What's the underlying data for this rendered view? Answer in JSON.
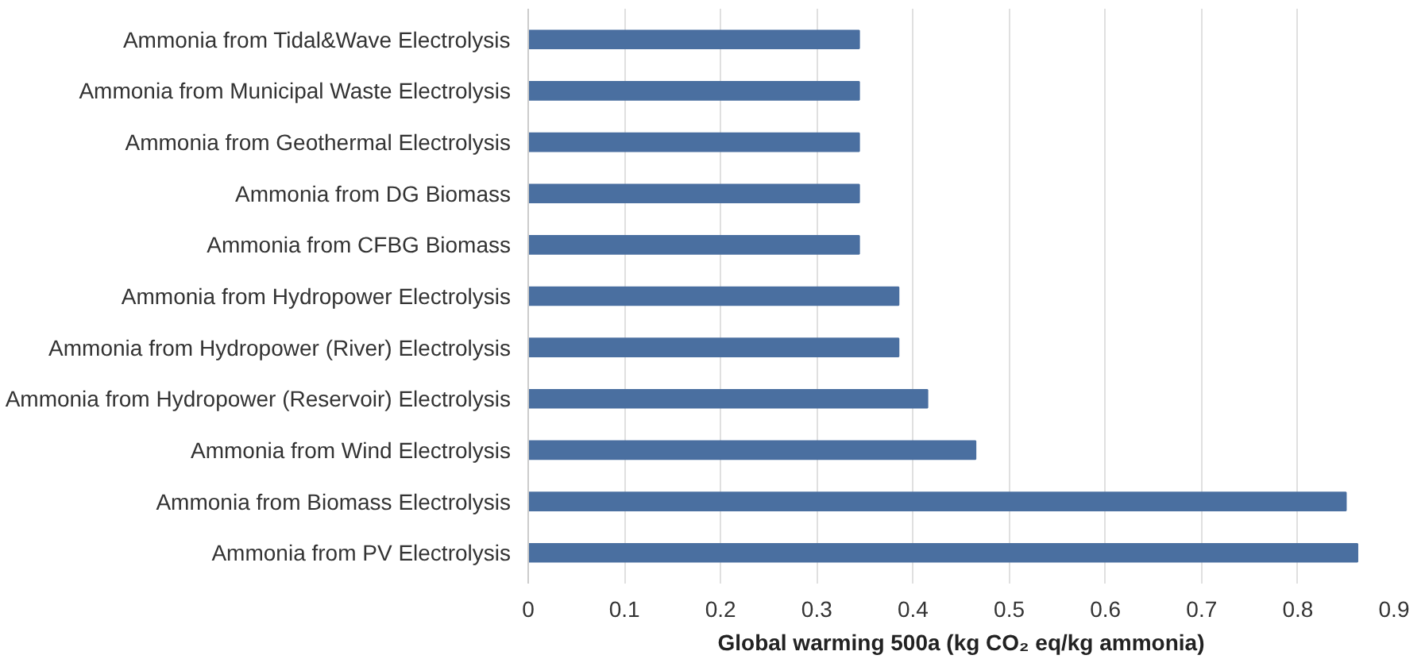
{
  "chart_data": {
    "type": "bar",
    "orientation": "horizontal",
    "xlabel": "Global warming 500a (kg CO₂ eq/kg ammonia)",
    "categories": [
      "Ammonia from Tidal&Wave Electrolysis",
      "Ammonia from Municipal Waste Electrolysis",
      "Ammonia from Geothermal Electrolysis",
      "Ammonia from DG Biomass",
      "Ammonia from CFBG Biomass",
      "Ammonia from Hydropower Electrolysis",
      "Ammonia from Hydropower (River) Electrolysis",
      "Ammonia from Hydropower (Reservoir) Electrolysis",
      "Ammonia from Wind Electrolysis",
      "Ammonia from Biomass Electrolysis",
      "Ammonia from PV Electrolysis"
    ],
    "values": [
      0.344,
      0.344,
      0.344,
      0.344,
      0.344,
      0.385,
      0.385,
      0.415,
      0.465,
      0.85,
      0.862
    ],
    "color": "#4a6fa0",
    "xlim": [
      0,
      0.9
    ],
    "xticks": [
      0,
      0.1,
      0.2,
      0.3,
      0.4,
      0.5,
      0.6,
      0.7,
      0.8,
      0.9
    ],
    "grid": "x"
  }
}
